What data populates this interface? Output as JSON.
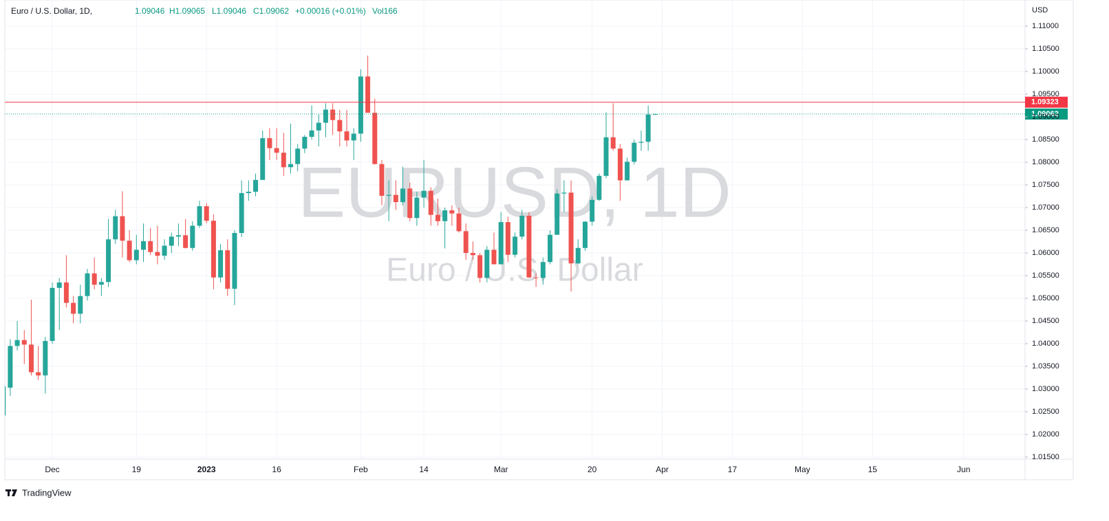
{
  "chart_data": {
    "type": "candlestick",
    "title": "Euro / U.S. Dollar, 1D,",
    "watermark": "EURUSD, 1D",
    "watermark_subtitle": "Euro / U.S. Dollar",
    "currency": "USD",
    "legend": {
      "open": "1.09046",
      "high": "H1.09065",
      "low": "L1.09046",
      "close": "C1.09062",
      "change": "+0.00016 (+0.01%)",
      "volume": "Vol166"
    },
    "brand": "TradingView",
    "up_color": "#26a69a",
    "down_color": "#ef5350",
    "grid": true,
    "ylim": [
      1.01455,
      1.11576
    ],
    "yticks": [
      {
        "value": 1.015,
        "label": "1.01500"
      },
      {
        "value": 1.02,
        "label": "1.02000"
      },
      {
        "value": 1.025,
        "label": "1.02500"
      },
      {
        "value": 1.03,
        "label": "1.03000"
      },
      {
        "value": 1.035,
        "label": "1.03500"
      },
      {
        "value": 1.04,
        "label": "1.04000"
      },
      {
        "value": 1.045,
        "label": "1.04500"
      },
      {
        "value": 1.05,
        "label": "1.05000"
      },
      {
        "value": 1.055,
        "label": "1.05500"
      },
      {
        "value": 1.06,
        "label": "1.06000"
      },
      {
        "value": 1.065,
        "label": "1.06500"
      },
      {
        "value": 1.07,
        "label": "1.07000"
      },
      {
        "value": 1.075,
        "label": "1.07500"
      },
      {
        "value": 1.08,
        "label": "1.08000"
      },
      {
        "value": 1.085,
        "label": "1.08500"
      },
      {
        "value": 1.09,
        "label": "1.09000"
      },
      {
        "value": 1.095,
        "label": "1.09500"
      },
      {
        "value": 1.1,
        "label": "1.10000"
      },
      {
        "value": 1.105,
        "label": "1.10500"
      },
      {
        "value": 1.11,
        "label": "1.11000"
      }
    ],
    "horizontal_line": {
      "value": 1.09323,
      "label": "1.09323",
      "color": "#f23645"
    },
    "price_line": {
      "value": 1.09062,
      "label": "1.09062",
      "color": "#089981"
    },
    "categories": [
      null,
      null,
      null,
      null,
      null,
      null,
      null,
      "Dec",
      null,
      null,
      null,
      null,
      null,
      null,
      null,
      null,
      null,
      null,
      null,
      "19",
      null,
      null,
      null,
      null,
      null,
      null,
      null,
      null,
      null,
      "2023",
      null,
      null,
      null,
      null,
      null,
      null,
      null,
      null,
      null,
      "16",
      null,
      null,
      null,
      null,
      null,
      null,
      null,
      null,
      null,
      null,
      null,
      "Feb",
      null,
      null,
      null,
      null,
      null,
      null,
      null,
      null,
      "14",
      null,
      null,
      null,
      null,
      null,
      null,
      null,
      null,
      null,
      null,
      "Mar",
      null,
      null,
      null,
      null,
      null,
      null,
      null,
      null,
      null,
      null,
      null,
      null,
      "20",
      null,
      null,
      null,
      null,
      null,
      null,
      null,
      null,
      null,
      "Apr",
      null,
      null,
      null,
      null,
      null,
      null,
      null,
      null,
      null,
      "17",
      null,
      null,
      null,
      null,
      null,
      null,
      null,
      null,
      null,
      "May",
      null,
      null,
      null,
      null,
      null,
      null,
      null,
      null,
      null,
      "15",
      null,
      null,
      null,
      null,
      null,
      null,
      null,
      null,
      null,
      null,
      null,
      null,
      "Jun",
      null,
      null,
      null,
      null,
      null,
      null,
      null,
      null,
      null
    ],
    "open": [
      1.0242,
      1.0303,
      1.0395,
      1.0408,
      1.0398,
      1.0337,
      1.033,
      1.0406,
      1.0523,
      1.0535,
      1.049,
      1.0466,
      1.0505,
      1.0555,
      1.053,
      1.0536,
      1.063,
      1.0681,
      1.0627,
      1.0584,
      1.0607,
      1.0626,
      1.0602,
      1.0594,
      1.0616,
      1.0636,
      1.0639,
      1.0611,
      1.066,
      1.0703,
      1.0671,
      1.0546,
      1.0606,
      1.0521,
      1.0644,
      1.0732,
      1.0735,
      1.0761,
      1.0853,
      1.0831,
      1.0821,
      1.0789,
      1.0796,
      1.083,
      1.0856,
      1.087,
      1.0887,
      1.0916,
      1.0893,
      1.0868,
      1.0848,
      1.0863,
      1.0989,
      1.0909,
      1.0796,
      1.0726,
      1.0728,
      1.0712,
      1.0742,
      1.0677,
      1.0722,
      1.0737,
      1.0684,
      1.067,
      1.0694,
      1.0687,
      1.0648,
      1.06,
      1.0595,
      1.0545,
      1.0607,
      1.0575,
      1.0668,
      1.0596,
      1.0636,
      1.0682,
      1.0546,
      1.0545,
      1.058,
      1.064,
      1.0731,
      1.0733,
      1.0577,
      1.0611,
      1.0669,
      1.0717,
      1.077,
      1.0855,
      1.083,
      1.076,
      1.0801,
      1.0843,
      1.0845,
      1.09046,
      null,
      null,
      null,
      null,
      null,
      null,
      null,
      null,
      null,
      null,
      null,
      null,
      null,
      null,
      null,
      null,
      null,
      null,
      null,
      null,
      null,
      null,
      null,
      null,
      null,
      null,
      null,
      null,
      null,
      null,
      null,
      null,
      null,
      null,
      null,
      null,
      null,
      null,
      null,
      null,
      null,
      null,
      null,
      null,
      null,
      null,
      null,
      null,
      null,
      null,
      null,
      null,
      null
    ],
    "high": [
      1.031,
      1.041,
      1.045,
      1.043,
      1.0497,
      1.0395,
      1.0415,
      1.0535,
      1.0545,
      1.0595,
      1.0505,
      1.053,
      1.0565,
      1.059,
      1.0545,
      1.0675,
      1.0695,
      1.0736,
      1.065,
      1.064,
      1.0665,
      1.0655,
      1.066,
      1.063,
      1.0645,
      1.0665,
      1.0675,
      1.067,
      1.0715,
      1.071,
      1.0685,
      1.062,
      1.063,
      1.065,
      1.076,
      1.076,
      1.0775,
      1.087,
      1.0875,
      1.0875,
      1.0865,
      1.0885,
      1.084,
      1.086,
      1.0925,
      1.0905,
      1.093,
      1.093,
      1.0915,
      1.0915,
      1.0875,
      1.1005,
      1.1035,
      1.094,
      1.0805,
      1.076,
      1.076,
      1.079,
      1.0755,
      1.0735,
      1.0805,
      1.0745,
      1.072,
      1.07,
      1.0705,
      1.07,
      1.0665,
      1.0625,
      1.06,
      1.0615,
      1.0645,
      1.069,
      1.068,
      1.0645,
      1.0695,
      1.069,
      1.0555,
      1.059,
      1.065,
      1.074,
      1.076,
      1.076,
      1.063,
      1.067,
      1.0725,
      1.0775,
      1.091,
      1.093,
      1.084,
      1.081,
      1.085,
      1.087,
      1.0925,
      1.09065,
      null,
      null,
      null,
      null,
      null,
      null,
      null,
      null,
      null,
      null,
      null,
      null,
      null,
      null,
      null,
      null,
      null,
      null,
      null,
      null,
      null,
      null,
      null,
      null,
      null,
      null,
      null,
      null,
      null,
      null,
      null,
      null,
      null,
      null,
      null,
      null,
      null,
      null,
      null,
      null,
      null,
      null,
      null,
      null,
      null,
      null,
      null,
      null,
      null,
      null,
      null,
      null,
      null
    ],
    "low": [
      1.0225,
      1.0285,
      1.0385,
      1.0355,
      1.033,
      1.032,
      1.029,
      1.04,
      1.043,
      1.048,
      1.0445,
      1.0445,
      1.0495,
      1.052,
      1.0505,
      1.0525,
      1.062,
      1.059,
      1.058,
      1.0575,
      1.058,
      1.0595,
      1.0575,
      1.0585,
      1.06,
      1.0615,
      1.061,
      1.0605,
      1.0655,
      1.0665,
      1.052,
      1.0535,
      1.0505,
      1.0485,
      1.0635,
      1.0715,
      1.0725,
      1.0765,
      1.0805,
      1.0805,
      1.077,
      1.0775,
      1.078,
      1.082,
      1.085,
      1.0835,
      1.0855,
      1.086,
      1.0835,
      1.0835,
      1.0805,
      1.0845,
      1.091,
      1.0795,
      1.0705,
      1.067,
      1.0695,
      1.0705,
      1.067,
      1.066,
      1.07,
      1.066,
      1.066,
      1.061,
      1.066,
      1.0645,
      1.0585,
      1.0585,
      1.0535,
      1.0535,
      1.0575,
      1.0575,
      1.058,
      1.059,
      1.063,
      1.0545,
      1.0525,
      1.053,
      1.0575,
      1.064,
      1.069,
      1.0515,
      1.0575,
      1.0605,
      1.066,
      1.0715,
      1.0765,
      1.0825,
      1.0715,
      1.076,
      1.0795,
      1.0825,
      1.0825,
      1.09046,
      null,
      null,
      null,
      null,
      null,
      null,
      null,
      null,
      null,
      null,
      null,
      null,
      null,
      null,
      null,
      null,
      null,
      null,
      null,
      null,
      null,
      null,
      null,
      null,
      null,
      null,
      null,
      null,
      null,
      null,
      null,
      null,
      null,
      null,
      null,
      null,
      null,
      null,
      null,
      null,
      null,
      null,
      null,
      null,
      null,
      null,
      null,
      null,
      null,
      null,
      null,
      null,
      null
    ],
    "close": [
      1.0306,
      1.0395,
      1.0408,
      1.0398,
      1.0337,
      1.033,
      1.0406,
      1.0523,
      1.0535,
      1.049,
      1.0466,
      1.0505,
      1.0555,
      1.053,
      1.0536,
      1.063,
      1.0681,
      1.0627,
      1.0584,
      1.0607,
      1.0626,
      1.0602,
      1.0594,
      1.0616,
      1.0636,
      1.0639,
      1.0611,
      1.066,
      1.0703,
      1.0671,
      1.0546,
      1.0606,
      1.0521,
      1.0644,
      1.0732,
      1.0735,
      1.0761,
      1.0853,
      1.0831,
      1.0821,
      1.0789,
      1.0796,
      1.083,
      1.0856,
      1.087,
      1.0887,
      1.0916,
      1.0893,
      1.0868,
      1.0848,
      1.0863,
      1.0989,
      1.0909,
      1.0796,
      1.0726,
      1.0728,
      1.0712,
      1.0742,
      1.0677,
      1.0722,
      1.0737,
      1.0684,
      1.067,
      1.0694,
      1.0687,
      1.0648,
      1.06,
      1.0595,
      1.0545,
      1.0607,
      1.0575,
      1.0668,
      1.0596,
      1.0636,
      1.0682,
      1.0546,
      1.0545,
      1.058,
      1.064,
      1.0731,
      1.0733,
      1.0577,
      1.0611,
      1.0669,
      1.0717,
      1.077,
      1.0855,
      1.083,
      1.076,
      1.0801,
      1.0843,
      1.0845,
      1.0905,
      1.09062,
      null,
      null,
      null,
      null,
      null,
      null,
      null,
      null,
      null,
      null,
      null,
      null,
      null,
      null,
      null,
      null,
      null,
      null,
      null,
      null,
      null,
      null,
      null,
      null,
      null,
      null,
      null,
      null,
      null,
      null,
      null,
      null,
      null,
      null,
      null,
      null,
      null,
      null,
      null,
      null,
      null,
      null,
      null,
      null,
      null,
      null,
      null,
      null,
      null,
      null,
      null,
      null,
      null
    ]
  }
}
